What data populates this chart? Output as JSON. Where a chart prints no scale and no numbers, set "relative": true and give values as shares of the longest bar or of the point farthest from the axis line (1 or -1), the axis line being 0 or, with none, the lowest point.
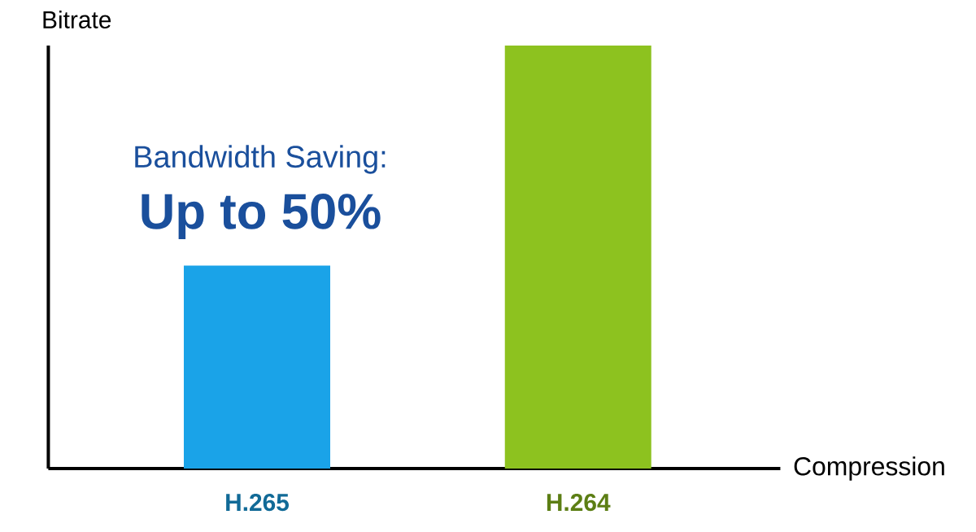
{
  "chart_data": {
    "type": "bar",
    "relative": true,
    "xlabel": "Compression",
    "ylabel": "Bitrate",
    "categories": [
      "H.265",
      "H.264"
    ],
    "values": [
      0.48,
      1
    ],
    "colors": [
      "#1aa3e8",
      "#8dc21f"
    ],
    "annotations": [
      "Bandwidth Saving:",
      "Up to 50%"
    ]
  }
}
